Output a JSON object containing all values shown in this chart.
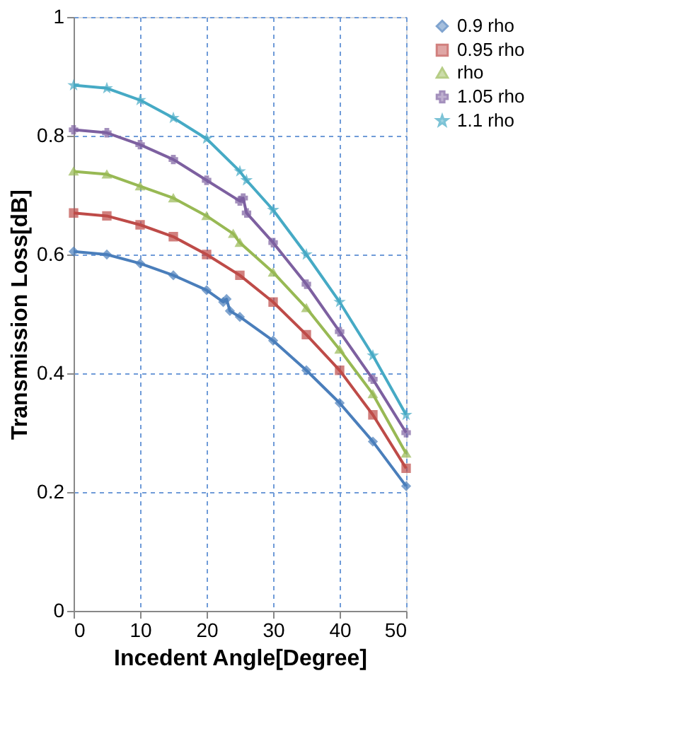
{
  "chart_data": {
    "type": "line",
    "xlabel": "Incedent Angle[Degree]",
    "ylabel": "Transmission Loss[dB]",
    "xlim": [
      0,
      50
    ],
    "xticks": [
      0,
      10,
      20,
      30,
      40,
      50
    ],
    "ylim": [
      0,
      1
    ],
    "yticks": [
      0,
      0.2,
      0.4,
      0.6,
      0.8,
      1
    ],
    "grid": true,
    "legend": "right",
    "line_style": "solid",
    "series": [
      {
        "name": "0.9 rho",
        "color": "#4a7ebb",
        "marker": "diamond",
        "x": [
          0,
          5,
          10,
          15,
          20,
          22.5,
          23,
          23.5,
          25,
          30,
          35,
          40,
          45,
          50
        ],
        "values": [
          0.605,
          0.6,
          0.585,
          0.565,
          0.54,
          0.52,
          0.525,
          0.505,
          0.495,
          0.455,
          0.405,
          0.35,
          0.285,
          0.21
        ]
      },
      {
        "name": "0.95 rho",
        "color": "#be4b48",
        "marker": "square",
        "x": [
          0,
          5,
          10,
          15,
          20,
          25,
          30,
          35,
          40,
          45,
          50
        ],
        "values": [
          0.67,
          0.665,
          0.65,
          0.63,
          0.6,
          0.565,
          0.52,
          0.465,
          0.405,
          0.33,
          0.24
        ]
      },
      {
        "name": "rho",
        "color": "#98b954",
        "marker": "triangle",
        "x": [
          0,
          5,
          10,
          15,
          20,
          24,
          25,
          30,
          35,
          40,
          45,
          50
        ],
        "values": [
          0.74,
          0.735,
          0.715,
          0.695,
          0.665,
          0.635,
          0.62,
          0.57,
          0.51,
          0.44,
          0.365,
          0.265
        ]
      },
      {
        "name": "1.05 rho",
        "color": "#7d60a0",
        "marker": "cross",
        "x": [
          0,
          5,
          10,
          15,
          20,
          25,
          25.5,
          26,
          30,
          35,
          40,
          45,
          50
        ],
        "values": [
          0.81,
          0.805,
          0.785,
          0.76,
          0.725,
          0.69,
          0.695,
          0.67,
          0.62,
          0.55,
          0.47,
          0.39,
          0.3
        ]
      },
      {
        "name": "1.1 rho",
        "color": "#46aac5",
        "marker": "star",
        "x": [
          0,
          5,
          10,
          15,
          20,
          25,
          26,
          30,
          35,
          40,
          45,
          50
        ],
        "values": [
          0.885,
          0.88,
          0.86,
          0.83,
          0.795,
          0.74,
          0.725,
          0.675,
          0.6,
          0.52,
          0.43,
          0.33
        ]
      }
    ]
  }
}
